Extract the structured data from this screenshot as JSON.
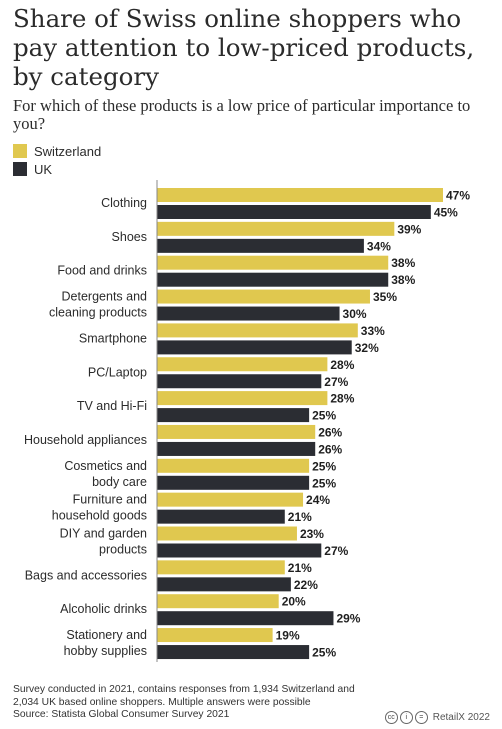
{
  "title": "Share of Swiss online shoppers who pay attention to low-priced products, by category",
  "subtitle": "For which of these products is a low price of particular importance to you?",
  "legend": [
    {
      "label": "Switzerland",
      "color": "#e0c84f"
    },
    {
      "label": "UK",
      "color": "#2b2d33"
    }
  ],
  "footer": {
    "note": "Survey conducted in 2021, contains responses from 1,934 Switzerland and 2,034 UK based online shoppers. Multiple answers were possible",
    "source": "Source: Statista Global Consumer Survey 2021",
    "brand": "RetailX 2022"
  },
  "chart_data": {
    "type": "bar",
    "orientation": "horizontal",
    "value_suffix": "%",
    "categories": [
      [
        "Clothing"
      ],
      [
        "Shoes"
      ],
      [
        "Food and drinks"
      ],
      [
        "Detergents and",
        "cleaning products"
      ],
      [
        "Smartphone"
      ],
      [
        "PC/Laptop"
      ],
      [
        "TV and Hi-Fi"
      ],
      [
        "Household appliances"
      ],
      [
        "Cosmetics and",
        "body care"
      ],
      [
        "Furniture and",
        "household goods"
      ],
      [
        "DIY and garden",
        "products"
      ],
      [
        "Bags and accessories"
      ],
      [
        "Alcoholic drinks"
      ],
      [
        "Stationery and",
        "hobby supplies"
      ]
    ],
    "series": [
      {
        "name": "Switzerland",
        "color": "#e0c84f",
        "values": [
          47,
          39,
          38,
          35,
          33,
          28,
          28,
          26,
          25,
          24,
          23,
          21,
          20,
          19
        ]
      },
      {
        "name": "UK",
        "color": "#2b2d33",
        "values": [
          45,
          34,
          38,
          30,
          32,
          27,
          25,
          26,
          25,
          21,
          27,
          22,
          29,
          25
        ]
      }
    ],
    "xlim": [
      0,
      47
    ],
    "grid": false
  }
}
